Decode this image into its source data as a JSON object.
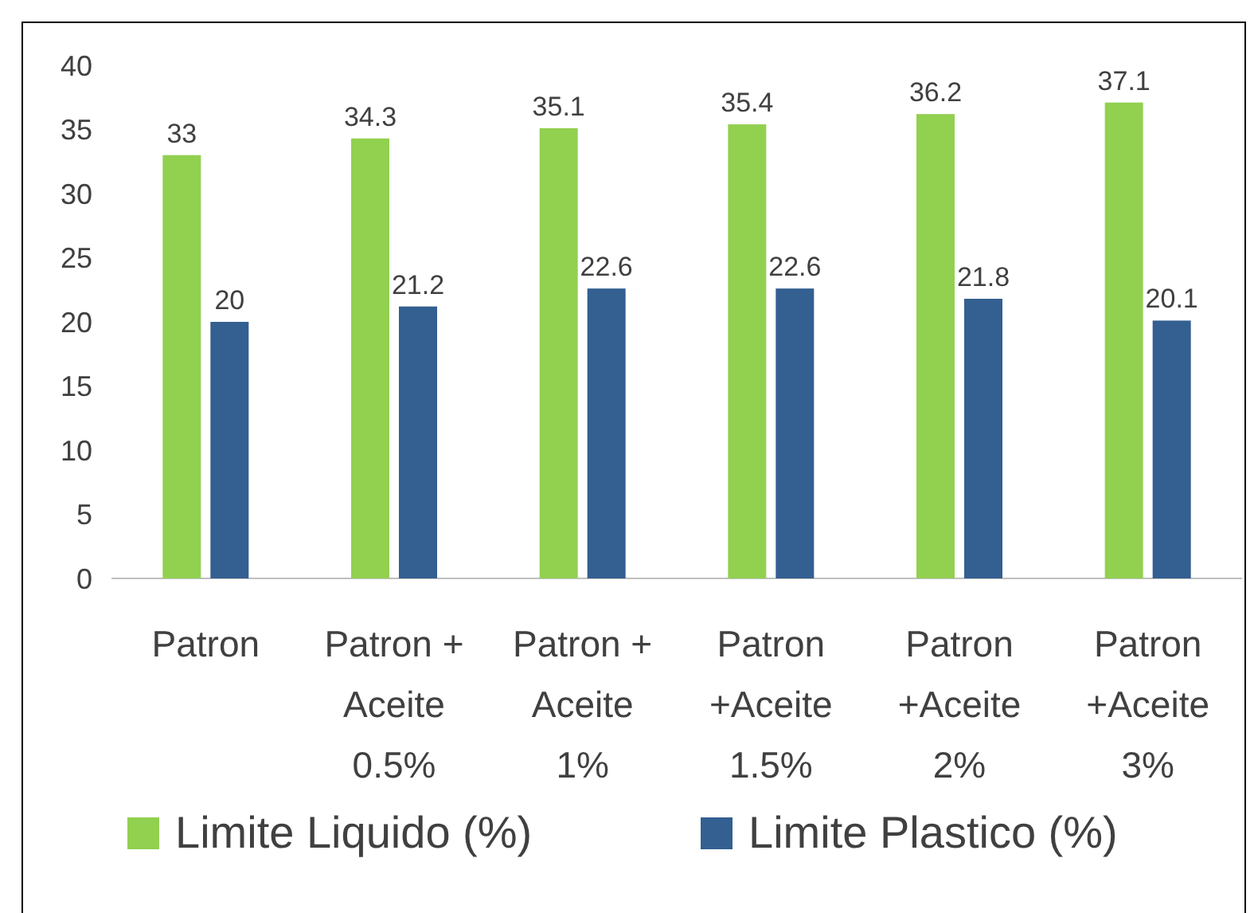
{
  "chart_data": {
    "type": "bar",
    "categories": [
      "Patron",
      "Patron +\nAceite\n0.5%",
      "Patron +\nAceite\n1%",
      "Patron\n+Aceite\n1.5%",
      "Patron\n+Aceite\n2%",
      "Patron\n+Aceite\n3%"
    ],
    "series": [
      {
        "name": "Limite Liquido (%)",
        "color": "#92d050",
        "values": [
          33,
          34.3,
          35.1,
          35.4,
          36.2,
          37.1
        ]
      },
      {
        "name": "Limite Plastico (%)",
        "color": "#335f91",
        "values": [
          20,
          21.2,
          22.6,
          22.6,
          21.8,
          20.1
        ]
      }
    ],
    "ylim": [
      0,
      40
    ],
    "yticks": [
      0,
      5,
      10,
      15,
      20,
      25,
      30,
      35,
      40
    ],
    "grid": false,
    "legend": "bottom",
    "data_labels": true
  }
}
